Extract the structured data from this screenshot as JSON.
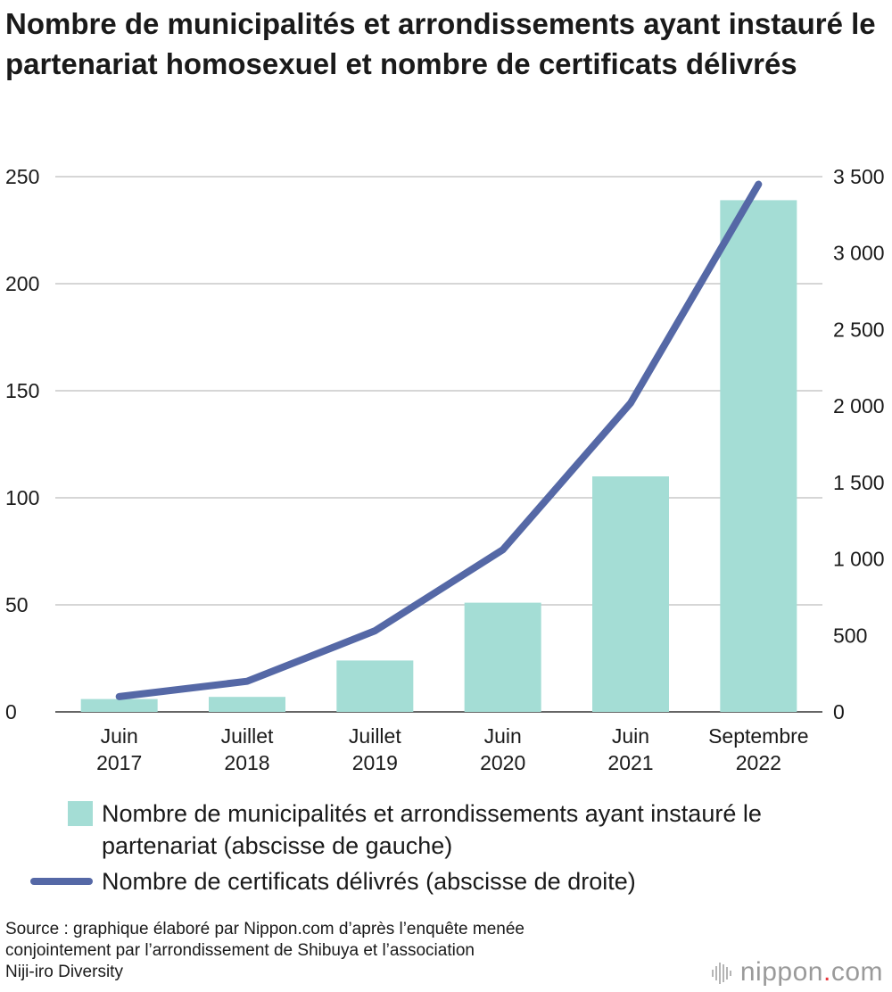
{
  "title": "Nombre de municipalités et arrondissements ayant instauré le partenariat homosexuel et nombre de certificats délivrés",
  "chart_data": {
    "type": "bar",
    "categories": [
      [
        "Juin",
        "2017"
      ],
      [
        "Juillet",
        "2018"
      ],
      [
        "Juillet",
        "2019"
      ],
      [
        "Juin",
        "2020"
      ],
      [
        "Juin",
        "2021"
      ],
      [
        "Septembre",
        "2022"
      ]
    ],
    "series": [
      {
        "name": "Nombre de municipalités et arrondissements ayant instauré le partenariat (abscisse de gauche)",
        "type": "bar",
        "axis": "left",
        "values": [
          6,
          7,
          24,
          51,
          110,
          239
        ],
        "color": "#a4ddd5"
      },
      {
        "name": "Nombre de certificats délivrés (abscisse de droite)",
        "type": "line",
        "axis": "right",
        "values": [
          100,
          200,
          530,
          1060,
          2020,
          3450
        ],
        "color": "#5568a6"
      }
    ],
    "left_axis": {
      "ylim": [
        0,
        250
      ],
      "ticks": [
        0,
        50,
        100,
        150,
        200,
        250
      ],
      "tick_labels": [
        "0",
        "50",
        "100",
        "150",
        "200",
        "250"
      ]
    },
    "right_axis": {
      "ylim": [
        0,
        3500
      ],
      "ticks": [
        0,
        500,
        1000,
        1500,
        2000,
        2500,
        3000,
        3500
      ],
      "tick_labels": [
        "0",
        "500",
        "1 000",
        "1 500",
        "2 000",
        "2 500",
        "3 000",
        "3 500"
      ]
    },
    "grid": true,
    "legend_position": "bottom-left"
  },
  "legend": {
    "bar_label": "Nombre de municipalités et arrondissements ayant instauré le partenariat (abscisse de gauche)",
    "line_label": "Nombre de certificats délivrés (abscisse de droite)"
  },
  "source": "Source : graphique élaboré par Nippon.com d’après l’enquête menée\nconjointement par l’arrondissement de Shibuya et l’association\nNiji-iro Diversity",
  "brand": {
    "name": "nippon",
    "dot": ".",
    "suffix": "com"
  }
}
